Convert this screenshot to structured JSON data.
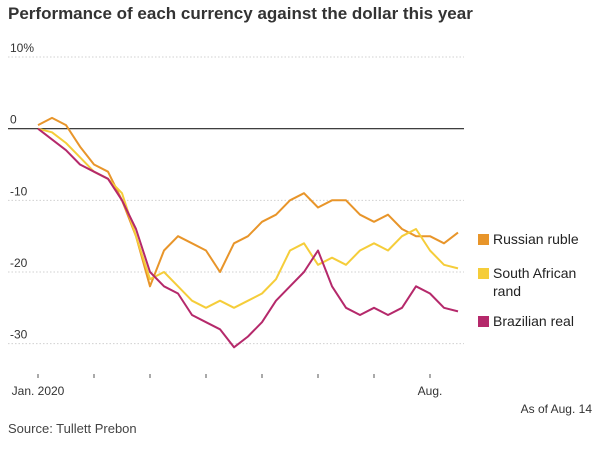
{
  "header": {
    "title": "Performance of each currency against the dollar this year",
    "as_of": "As of Aug. 14",
    "source": "Source: Tullett Prebon"
  },
  "chart_data": {
    "type": "line",
    "title": "Performance of each currency against the dollar this year",
    "xlabel": "",
    "ylabel": "",
    "ylim": [
      -32,
      10
    ],
    "yticks": [
      {
        "value": 10,
        "label": "10%"
      },
      {
        "value": 0,
        "label": "0"
      },
      {
        "value": -10,
        "label": "-10"
      },
      {
        "value": -20,
        "label": "-20"
      },
      {
        "value": -30,
        "label": "-30"
      }
    ],
    "xticks": [
      {
        "x": 0,
        "label": "Jan. 2020"
      },
      {
        "x": 7,
        "label": "Aug."
      }
    ],
    "x": [
      0,
      0.25,
      0.5,
      0.75,
      1,
      1.25,
      1.5,
      1.75,
      2,
      2.25,
      2.5,
      2.75,
      3,
      3.25,
      3.5,
      3.75,
      4,
      4.25,
      4.5,
      4.75,
      5,
      5.25,
      5.5,
      5.75,
      6,
      6.25,
      6.5,
      6.75,
      7,
      7.25,
      7.5
    ],
    "series": [
      {
        "name": "Russian ruble",
        "color": "#e8952a",
        "values": [
          0.5,
          1.5,
          0.5,
          -2.5,
          -5,
          -6,
          -10,
          -15,
          -22,
          -17,
          -15,
          -16,
          -17,
          -20,
          -16,
          -15,
          -13,
          -12,
          -10,
          -9,
          -11,
          -10,
          -10,
          -12,
          -13,
          -12,
          -14,
          -15,
          -15,
          -16,
          -14.5
        ]
      },
      {
        "name": "South African rand",
        "color": "#f5cd3a",
        "values": [
          0,
          -0.5,
          -2,
          -4,
          -6,
          -7,
          -9,
          -15,
          -21,
          -20,
          -22,
          -24,
          -25,
          -24,
          -25,
          -24,
          -23,
          -21,
          -17,
          -16,
          -19,
          -18,
          -19,
          -17,
          -16,
          -17,
          -15,
          -14,
          -17,
          -19,
          -19.5
        ]
      },
      {
        "name": "Brazilian real",
        "color": "#b5296b",
        "values": [
          0,
          -1.5,
          -3,
          -5,
          -6,
          -7,
          -10,
          -14,
          -20,
          -22,
          -23,
          -26,
          -27,
          -28,
          -30.5,
          -29,
          -27,
          -24,
          -22,
          -20,
          -17,
          -22,
          -25,
          -26,
          -25,
          -26,
          -25,
          -22,
          -23,
          -25,
          -25.5
        ]
      }
    ],
    "legend_position": "right",
    "grid": true
  }
}
